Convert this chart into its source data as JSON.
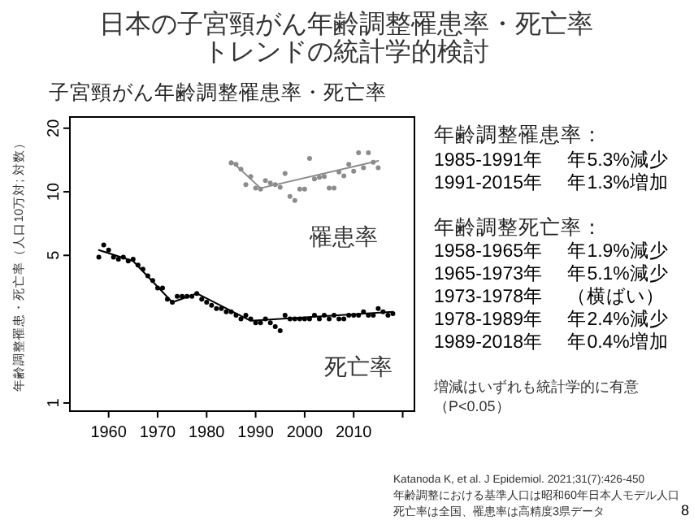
{
  "chart_data": {
    "type": "scatter",
    "title": "日本の子宮頸がん年齢調整罹患率・死亡率トレンドの統計学的検討",
    "subtitle": "子宮頸がん年齢調整罹患率・死亡率",
    "ylabel": "年齢調整罹患・死亡率（人口10万対; 対数）",
    "log": "y",
    "xlim": [
      1952.1,
      2022.4
    ],
    "ylim": [
      0.915,
      22.6
    ],
    "xticks": [
      1960,
      1970,
      1980,
      1990,
      2000,
      2010,
      {
        "value": 2020,
        "label": null
      }
    ],
    "yticks": [
      1,
      5,
      10,
      20
    ],
    "series": [
      {
        "name": "罹患率",
        "marker": "circle",
        "color": "#8c8c8c",
        "x": [
          1985,
          1986,
          1987,
          1988,
          1989,
          1990,
          1991,
          1992,
          1993,
          1994,
          1995,
          1996,
          1997,
          1998,
          1999,
          2000,
          2001,
          2002,
          2003,
          2004,
          2005,
          2006,
          2007,
          2008,
          2009,
          2010,
          2011,
          2012,
          2013,
          2014,
          2015
        ],
        "values": [
          13.7,
          13.5,
          12.8,
          10.8,
          11.8,
          10.4,
          10.3,
          11.3,
          11.0,
          10.8,
          10.5,
          12.2,
          9.5,
          9.1,
          10.3,
          10.3,
          14.4,
          11.5,
          11.7,
          11.8,
          10.4,
          10.4,
          12.4,
          11.9,
          13.5,
          12.5,
          15.3,
          13.0,
          15.3,
          13.8,
          13.0
        ]
      },
      {
        "type": "line",
        "color": "#8c8c8c",
        "x": [
          1985,
          1991,
          2015
        ],
        "values": [
          14.0,
          10.4,
          14.0
        ]
      },
      {
        "name": "死亡率",
        "marker": "circle",
        "color": "#000000",
        "x": [
          1958,
          1959,
          1960,
          1961,
          1962,
          1963,
          1964,
          1965,
          1966,
          1967,
          1968,
          1969,
          1970,
          1971,
          1972,
          1973,
          1974,
          1975,
          1976,
          1977,
          1978,
          1979,
          1980,
          1981,
          1982,
          1983,
          1984,
          1985,
          1986,
          1987,
          1988,
          1989,
          1990,
          1991,
          1992,
          1993,
          1994,
          1995,
          1996,
          1997,
          1998,
          1999,
          2000,
          2001,
          2002,
          2003,
          2004,
          2005,
          2006,
          2007,
          2008,
          2009,
          2010,
          2011,
          2012,
          2013,
          2014,
          2015,
          2016,
          2017,
          2018
        ],
        "values": [
          4.9,
          5.6,
          5.3,
          4.9,
          4.8,
          4.9,
          4.7,
          4.8,
          4.5,
          4.3,
          4.0,
          3.8,
          3.5,
          3.5,
          3.1,
          3.0,
          3.2,
          3.2,
          3.2,
          3.2,
          3.3,
          3.1,
          3.0,
          2.9,
          2.8,
          2.8,
          2.7,
          2.7,
          2.6,
          2.5,
          2.6,
          2.5,
          2.4,
          2.4,
          2.5,
          2.4,
          2.3,
          2.2,
          2.6,
          2.5,
          2.5,
          2.5,
          2.5,
          2.5,
          2.6,
          2.5,
          2.6,
          2.5,
          2.6,
          2.5,
          2.5,
          2.6,
          2.6,
          2.6,
          2.7,
          2.6,
          2.6,
          2.8,
          2.7,
          2.6,
          2.65
        ]
      },
      {
        "type": "line",
        "color": "#000000",
        "x": [
          1958,
          1965,
          1973,
          1978,
          1989,
          2018
        ],
        "values": [
          5.3,
          4.7,
          3.0,
          3.3,
          2.45,
          2.7
        ]
      }
    ],
    "annotations": [
      "年齢調整罹患率：",
      "1985-1991年　 年5.3%減少",
      "1991-2015年　 年1.3%増加",
      "年齢調整死亡率：",
      "1958-1965年　 年1.9%減少",
      "1965-1973年　 年5.1%減少",
      "1973-1978年　 （横ばい）",
      "1978-1989年　 年2.4%減少",
      "1989-2018年　 年0.4%増加",
      "増減はいずれも統計学的に有意",
      "（P<0.05）",
      "Katanoda K, et al. J Epidemiol. 2021;31(7):426-450",
      "年齢調整における基準人口は昭和60年日本人モデル人口",
      "死亡率は全国、罹患率は高精度3県データ",
      "8"
    ]
  }
}
